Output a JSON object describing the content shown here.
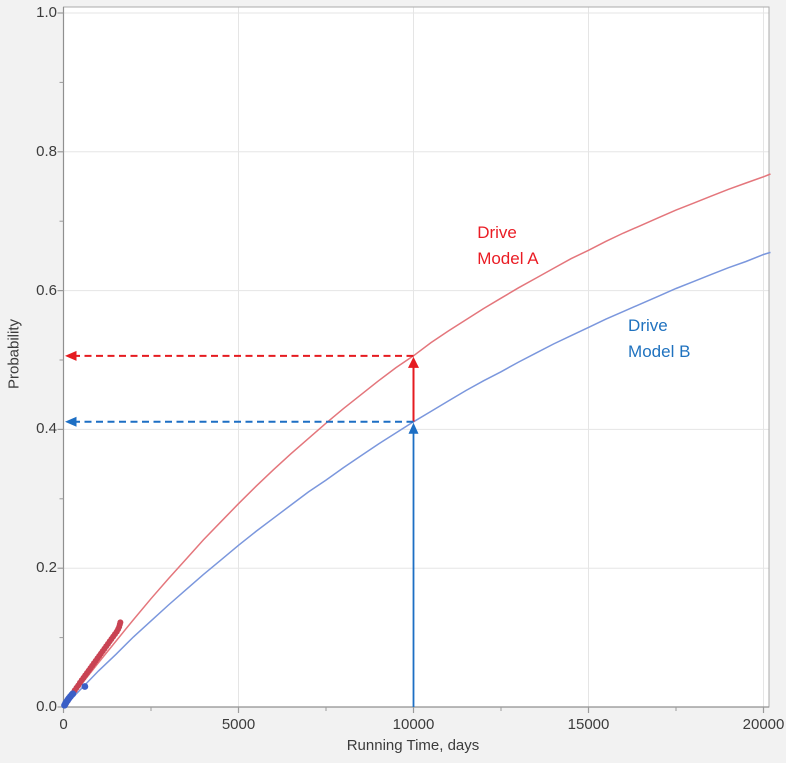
{
  "colors": {
    "background": "#f2f2f2",
    "plot_background": "#ffffff",
    "gridline": "#e5e5e5",
    "frame": "#ababab",
    "axis_line": "#909090",
    "tick": "#9b9b9b",
    "tick_label": "#3c3c3c",
    "model_a_curve": "#e4767c",
    "model_b_curve": "#7b97dd",
    "model_a_points": "#c94353",
    "model_b_points": "#3b5fc6",
    "model_a_arrow": "#e51b20",
    "model_b_arrow": "#1d6fc4",
    "model_a_label": "#ea1c24",
    "model_b_label": "#1f72bf"
  },
  "chart_data": {
    "type": "line",
    "xlabel": "Running Time, days",
    "ylabel": "Probability",
    "xlim": [
      0,
      20000
    ],
    "ylim": [
      0,
      1.0
    ],
    "grid": true,
    "x_ticks": {
      "major_values": [
        0,
        5000,
        10000,
        15000,
        20000
      ],
      "major_labels": [
        "0",
        "5000",
        "10000",
        "15000",
        "20000"
      ],
      "minor_values": [
        2500,
        7500,
        12500,
        17500
      ]
    },
    "y_ticks": {
      "major_values": [
        0,
        0.2,
        0.4,
        0.6,
        0.8,
        1.0
      ],
      "major_labels": [
        "0.0",
        "0.2",
        "0.4",
        "0.6",
        "0.8",
        "1.0"
      ],
      "minor_values": [
        0.1,
        0.3,
        0.5,
        0.7,
        0.9
      ]
    },
    "series": [
      {
        "name": "Drive Model A",
        "label_line1": "Drive",
        "label_line2": "Model A",
        "label_anchor": {
          "days": 11820,
          "prob": 0.702
        },
        "x": [
          0,
          500,
          1000,
          1500,
          2000,
          2500,
          3000,
          3500,
          4000,
          4500,
          5000,
          5500,
          6000,
          6500,
          7000,
          7500,
          8000,
          8500,
          9000,
          9500,
          10000,
          10500,
          11000,
          11500,
          12000,
          12500,
          13000,
          13500,
          14000,
          14500,
          15000,
          15500,
          16000,
          16500,
          17000,
          17500,
          18000,
          18500,
          19000,
          19500,
          20000,
          20200
        ],
        "y": [
          0,
          0.032,
          0.064,
          0.095,
          0.126,
          0.156,
          0.185,
          0.213,
          0.241,
          0.267,
          0.293,
          0.318,
          0.342,
          0.365,
          0.387,
          0.409,
          0.43,
          0.45,
          0.47,
          0.489,
          0.506,
          0.525,
          0.542,
          0.558,
          0.574,
          0.589,
          0.604,
          0.618,
          0.632,
          0.646,
          0.658,
          0.671,
          0.683,
          0.694,
          0.705,
          0.716,
          0.726,
          0.736,
          0.746,
          0.755,
          0.764,
          0.768
        ]
      },
      {
        "name": "Drive Model B",
        "label_line1": "Drive",
        "label_line2": "Model B",
        "label_anchor": {
          "days": 16130,
          "prob": 0.568
        },
        "x": [
          0,
          500,
          1000,
          1500,
          2000,
          2500,
          3000,
          3500,
          4000,
          4500,
          5000,
          5500,
          6000,
          6500,
          7000,
          7500,
          8000,
          8500,
          9000,
          9500,
          10000,
          10500,
          11000,
          11500,
          12000,
          12500,
          13000,
          13500,
          14000,
          14500,
          15000,
          15500,
          16000,
          16500,
          17000,
          17500,
          18000,
          18500,
          19000,
          19500,
          20000,
          20200
        ],
        "y": [
          0,
          0.026,
          0.052,
          0.076,
          0.101,
          0.124,
          0.147,
          0.169,
          0.191,
          0.212,
          0.233,
          0.253,
          0.272,
          0.291,
          0.31,
          0.327,
          0.345,
          0.362,
          0.379,
          0.395,
          0.411,
          0.426,
          0.441,
          0.456,
          0.47,
          0.483,
          0.497,
          0.51,
          0.523,
          0.535,
          0.547,
          0.559,
          0.57,
          0.581,
          0.592,
          0.603,
          0.613,
          0.623,
          0.633,
          0.642,
          0.652,
          0.655
        ]
      }
    ],
    "scatter": [
      {
        "name": "model-a-failure-points",
        "points": [
          [
            70,
            0.005
          ],
          [
            120,
            0.009
          ],
          [
            170,
            0.013
          ],
          [
            220,
            0.0165
          ],
          [
            270,
            0.02
          ],
          [
            320,
            0.024
          ],
          [
            370,
            0.0275
          ],
          [
            420,
            0.031
          ],
          [
            470,
            0.035
          ],
          [
            520,
            0.0385
          ],
          [
            570,
            0.042
          ],
          [
            620,
            0.0455
          ],
          [
            670,
            0.049
          ],
          [
            720,
            0.0525
          ],
          [
            770,
            0.056
          ],
          [
            820,
            0.0595
          ],
          [
            870,
            0.063
          ],
          [
            920,
            0.0665
          ],
          [
            970,
            0.07
          ],
          [
            1020,
            0.0735
          ],
          [
            1070,
            0.077
          ],
          [
            1120,
            0.0805
          ],
          [
            1170,
            0.084
          ],
          [
            1220,
            0.0875
          ],
          [
            1270,
            0.091
          ],
          [
            1320,
            0.0945
          ],
          [
            1370,
            0.098
          ],
          [
            1420,
            0.1015
          ],
          [
            1470,
            0.105
          ],
          [
            1520,
            0.1085
          ],
          [
            1560,
            0.112
          ],
          [
            1590,
            0.1155
          ],
          [
            1610,
            0.119
          ],
          [
            1625,
            0.122
          ]
        ]
      },
      {
        "name": "model-b-failure-points",
        "points": [
          [
            30,
            0.0025
          ],
          [
            55,
            0.005
          ],
          [
            85,
            0.0075
          ],
          [
            120,
            0.01
          ],
          [
            155,
            0.0125
          ],
          [
            195,
            0.015
          ],
          [
            235,
            0.0175
          ],
          [
            265,
            0.019
          ],
          [
            610,
            0.0295
          ]
        ]
      }
    ],
    "annotations": {
      "reference_time_days": 10000,
      "model_a_prob_at_reference": 0.506,
      "model_b_prob_at_reference": 0.411
    }
  }
}
